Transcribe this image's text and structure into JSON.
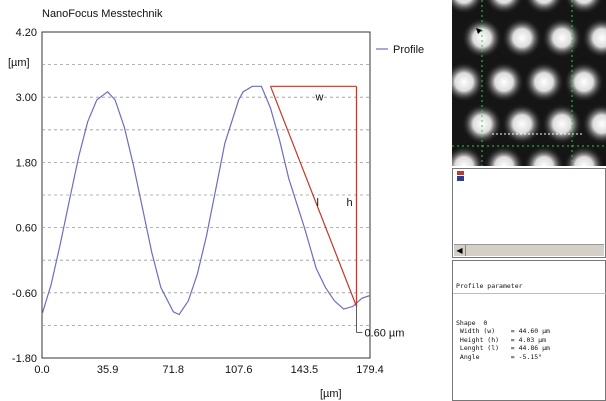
{
  "chart_data": {
    "type": "line",
    "title": "NanoFocus Messtechnik",
    "ylabel": "[µm]",
    "xlabel": "[µm]",
    "x_ticks": [
      "0.0",
      "35.9",
      "71.8",
      "107.6",
      "143.5",
      "179.4"
    ],
    "y_ticks": [
      "4.20",
      "3.00",
      "1.80",
      "0.60",
      "-0.60",
      "-1.80"
    ],
    "xlim": [
      0,
      179.4
    ],
    "ylim": [
      -1.8,
      4.2
    ],
    "grid": true,
    "legend": "top-right",
    "series": [
      {
        "name": "Profile",
        "color": "#6a6fbf",
        "x": [
          0,
          5,
          10,
          15,
          20,
          25,
          30,
          35.9,
          40,
          45,
          50,
          55,
          60,
          65,
          71.8,
          75,
          80,
          85,
          90,
          95,
          100,
          107.6,
          110,
          115,
          120,
          125,
          130,
          135,
          143.5,
          150,
          155,
          160,
          165,
          170,
          175,
          179.4
        ],
        "y": [
          -1.0,
          -0.45,
          0.3,
          1.1,
          1.9,
          2.55,
          2.95,
          3.1,
          2.95,
          2.45,
          1.75,
          0.95,
          0.15,
          -0.5,
          -0.95,
          -1.0,
          -0.75,
          -0.25,
          0.45,
          1.3,
          2.15,
          2.95,
          3.1,
          3.2,
          3.2,
          2.8,
          2.2,
          1.5,
          0.6,
          -0.15,
          -0.5,
          -0.75,
          -0.9,
          -0.85,
          -0.7,
          -0.65
        ]
      }
    ],
    "annotations": {
      "triangle_apex": [
        125,
        3.2
      ],
      "triangle_corner": [
        172,
        3.2
      ],
      "triangle_base": [
        172,
        -0.85
      ],
      "w_label": "w",
      "h_label": "h",
      "l_label": "l",
      "value_label": "0.60 µm",
      "value_y": -0.85,
      "color": "#c0392b"
    }
  },
  "side": {
    "params_text": "Profile parameter\n\nShape  0\n Width (w)    = 44.60 µm\n Height (h)   = 4.03 µm\n Lenght (l)   = 44.86 µm\n Angle        = -5.15°",
    "params_title": "Profile parameter",
    "params_body": "Shape  0\n Width (w)    = 44.60 µm\n Height (h)   = 4.03 µm\n Lenght (l)   = 44.86 µm\n Angle        = -5.15°"
  }
}
